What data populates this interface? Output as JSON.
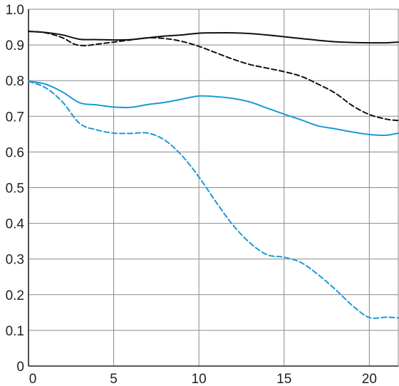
{
  "chart_data": {
    "type": "line",
    "title": "",
    "xlabel": "",
    "ylabel": "",
    "xlim": [
      0,
      21.7
    ],
    "ylim": [
      0,
      1.0
    ],
    "x_ticks": [
      0,
      5,
      10,
      15,
      20
    ],
    "x_tick_labels": [
      "0",
      "5",
      "10",
      "15",
      "20"
    ],
    "y_ticks": [
      0,
      0.1,
      0.2,
      0.3,
      0.4,
      0.5,
      0.6,
      0.7,
      0.8,
      0.9,
      1.0
    ],
    "y_tick_labels": [
      "0",
      "0.1",
      "0.2",
      "0.3",
      "0.4",
      "0.5",
      "0.6",
      "0.7",
      "0.8",
      "0.9",
      "1.0"
    ],
    "grid": true,
    "legend": "none",
    "series": [
      {
        "color": "#111111",
        "style": "solid",
        "x": [
          0,
          1,
          2,
          3,
          4,
          5,
          6,
          7,
          8,
          9,
          10,
          11,
          12,
          13,
          14,
          15,
          16,
          17,
          18,
          19,
          20,
          21,
          21.7
        ],
        "y": [
          0.938,
          0.935,
          0.928,
          0.916,
          0.915,
          0.914,
          0.915,
          0.92,
          0.925,
          0.928,
          0.933,
          0.934,
          0.934,
          0.932,
          0.928,
          0.923,
          0.918,
          0.913,
          0.909,
          0.907,
          0.906,
          0.906,
          0.908
        ]
      },
      {
        "color": "#111111",
        "style": "dashed",
        "x": [
          0,
          1,
          2,
          2.7,
          3.3,
          4,
          5,
          6,
          7,
          8,
          9,
          10,
          11,
          12,
          13,
          14,
          15,
          16,
          17,
          18,
          19,
          20,
          21,
          21.7
        ],
        "y": [
          0.938,
          0.934,
          0.92,
          0.902,
          0.898,
          0.902,
          0.908,
          0.914,
          0.92,
          0.918,
          0.91,
          0.896,
          0.878,
          0.86,
          0.845,
          0.835,
          0.825,
          0.812,
          0.79,
          0.765,
          0.73,
          0.705,
          0.692,
          0.688
        ]
      },
      {
        "color": "#1a9ad6",
        "style": "solid",
        "x": [
          0,
          1,
          2,
          3,
          4,
          5,
          6,
          7,
          8,
          9,
          10,
          11,
          12,
          13,
          14,
          15,
          16,
          17,
          18,
          19,
          20,
          21,
          21.7
        ],
        "y": [
          0.798,
          0.79,
          0.768,
          0.738,
          0.732,
          0.726,
          0.725,
          0.733,
          0.739,
          0.748,
          0.757,
          0.755,
          0.75,
          0.74,
          0.723,
          0.706,
          0.69,
          0.673,
          0.665,
          0.656,
          0.649,
          0.647,
          0.653
        ]
      },
      {
        "color": "#1a9ad6",
        "style": "dashed",
        "x": [
          0,
          1,
          2,
          3,
          4,
          5,
          6,
          7,
          8,
          9,
          10,
          11,
          12,
          13,
          14,
          15,
          16,
          17,
          18,
          19,
          20,
          21,
          21.7
        ],
        "y": [
          0.798,
          0.78,
          0.74,
          0.68,
          0.662,
          0.653,
          0.652,
          0.653,
          0.633,
          0.59,
          0.53,
          0.46,
          0.395,
          0.345,
          0.312,
          0.305,
          0.29,
          0.256,
          0.215,
          0.17,
          0.136,
          0.137,
          0.135
        ]
      }
    ]
  }
}
